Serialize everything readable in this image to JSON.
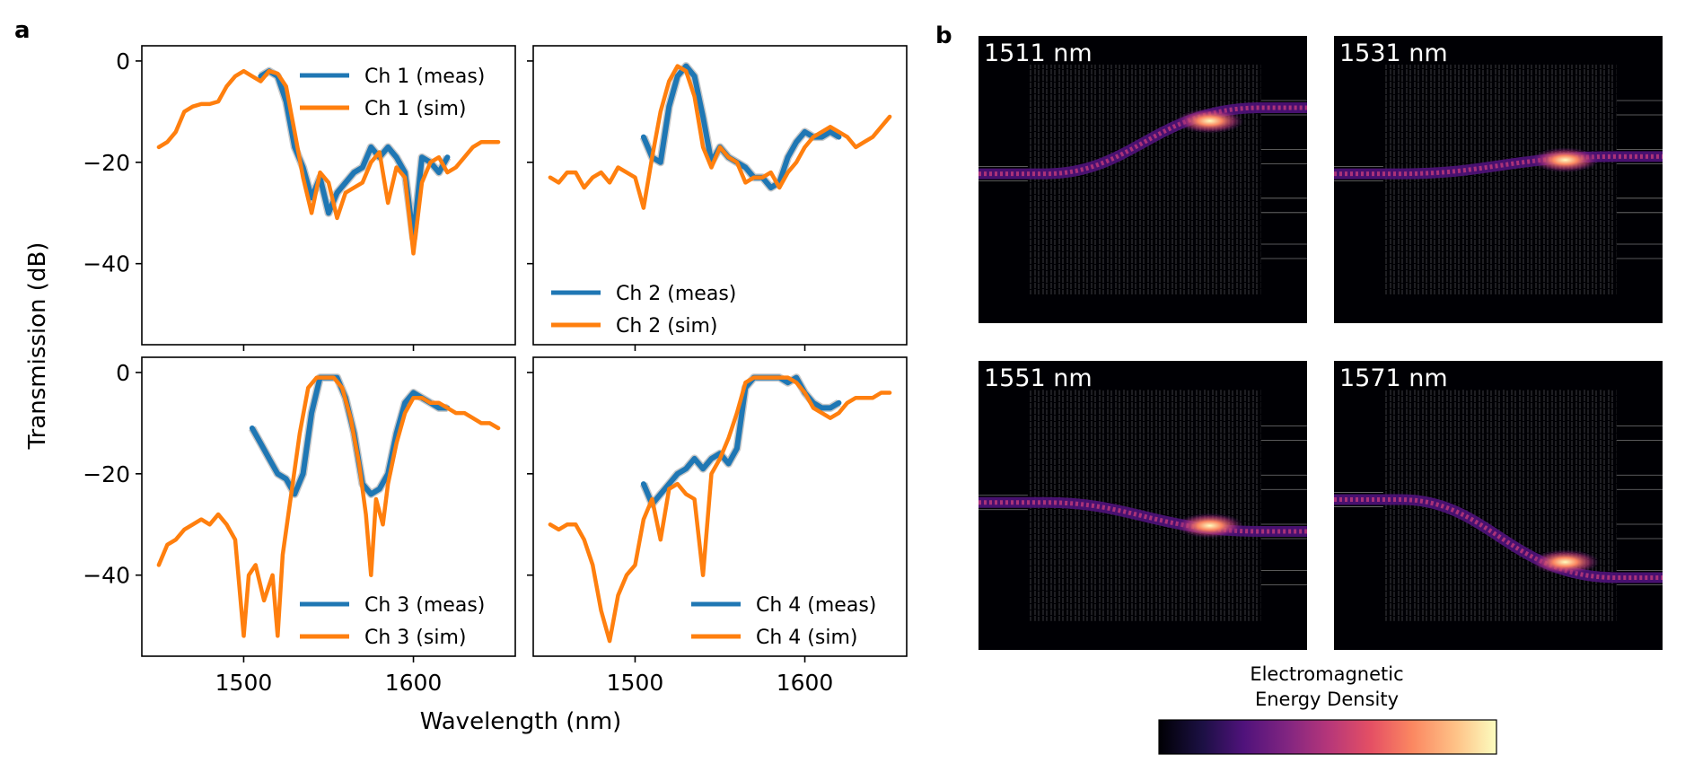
{
  "panel_a": {
    "label": "a",
    "xlabel": "Wavelength (nm)",
    "ylabel": "Transmission (dB)"
  },
  "panel_b": {
    "label": "b",
    "colorbar_title_line1": "Electromagnetic",
    "colorbar_title_line2": "Energy Density",
    "colormap": "magma",
    "fields": [
      {
        "label": "1511 nm",
        "input": 0.48,
        "output": 0.25,
        "output_name": "Ch 1"
      },
      {
        "label": "1531 nm",
        "input": 0.48,
        "output": 0.42,
        "output_name": "Ch 2"
      },
      {
        "label": "1551 nm",
        "input": 0.49,
        "output": 0.59,
        "output_name": "Ch 3"
      },
      {
        "label": "1571 nm",
        "input": 0.48,
        "output": 0.75,
        "output_name": "Ch 4"
      }
    ]
  },
  "colors": {
    "meas": "#1f77b4",
    "sim": "#ff7f0e",
    "field_bg": "#000004"
  },
  "chart_data": [
    {
      "type": "line",
      "channel": 1,
      "legend_loc": "upper-right",
      "xlim": [
        1440,
        1660
      ],
      "ylim": [
        -56,
        3
      ],
      "xticks": [
        1500,
        1600
      ],
      "yticks": [
        0,
        -20,
        -40
      ],
      "series": [
        {
          "name": "Ch 1 (meas)",
          "kind": "meas",
          "x": [
            1510,
            1515,
            1520,
            1525,
            1530,
            1535,
            1540,
            1545,
            1550,
            1555,
            1560,
            1565,
            1570,
            1575,
            1580,
            1585,
            1590,
            1595,
            1600,
            1605,
            1610,
            1615,
            1620
          ],
          "y": [
            -3,
            -2,
            -3,
            -8,
            -17,
            -21,
            -27,
            -23,
            -30,
            -26,
            -24,
            -22,
            -21,
            -17,
            -19,
            -17,
            -19,
            -22,
            -35,
            -19,
            -20,
            -22,
            -19
          ]
        },
        {
          "name": "Ch 1 (sim)",
          "kind": "sim",
          "x": [
            1450,
            1455,
            1460,
            1465,
            1470,
            1475,
            1480,
            1485,
            1490,
            1495,
            1500,
            1505,
            1510,
            1515,
            1520,
            1525,
            1530,
            1535,
            1540,
            1545,
            1550,
            1555,
            1560,
            1565,
            1570,
            1575,
            1580,
            1585,
            1590,
            1595,
            1600,
            1605,
            1610,
            1615,
            1620,
            1625,
            1630,
            1635,
            1640,
            1645,
            1650
          ],
          "y": [
            -17,
            -16,
            -14,
            -10,
            -9,
            -8.5,
            -8.5,
            -8,
            -5,
            -3,
            -2,
            -3,
            -4,
            -2,
            -2.5,
            -5,
            -14,
            -23,
            -30,
            -22,
            -24,
            -31,
            -26,
            -25,
            -24,
            -20,
            -18,
            -28,
            -21,
            -23,
            -38,
            -24,
            -20,
            -19,
            -22,
            -21,
            -19,
            -17,
            -16,
            -16,
            -16
          ]
        }
      ]
    },
    {
      "type": "line",
      "channel": 2,
      "legend_loc": "lower-right",
      "xlim": [
        1440,
        1660
      ],
      "ylim": [
        -56,
        3
      ],
      "xticks": [
        1500,
        1600
      ],
      "yticks": [
        0,
        -20,
        -40
      ],
      "series": [
        {
          "name": "Ch 2  (meas)",
          "kind": "meas",
          "x": [
            1505,
            1510,
            1515,
            1520,
            1525,
            1530,
            1535,
            1540,
            1545,
            1550,
            1555,
            1560,
            1565,
            1570,
            1575,
            1580,
            1585,
            1590,
            1595,
            1600,
            1605,
            1610,
            1615,
            1620
          ],
          "y": [
            -15,
            -19,
            -20,
            -9,
            -3,
            -1,
            -3,
            -11,
            -20,
            -17,
            -19,
            -20,
            -21,
            -23,
            -23,
            -25,
            -24,
            -19,
            -16,
            -14,
            -15,
            -15,
            -14,
            -15
          ]
        },
        {
          "name": "Ch 2 (sim)",
          "kind": "sim",
          "x": [
            1450,
            1455,
            1460,
            1465,
            1470,
            1475,
            1480,
            1485,
            1490,
            1495,
            1500,
            1505,
            1510,
            1515,
            1520,
            1525,
            1530,
            1535,
            1540,
            1545,
            1550,
            1555,
            1560,
            1565,
            1570,
            1575,
            1580,
            1585,
            1590,
            1595,
            1600,
            1605,
            1610,
            1615,
            1620,
            1625,
            1630,
            1635,
            1640,
            1645,
            1650
          ],
          "y": [
            -23,
            -24,
            -22,
            -22,
            -25,
            -23,
            -22,
            -24,
            -21,
            -22,
            -23,
            -29,
            -19,
            -10,
            -4,
            -1,
            -2,
            -7,
            -17,
            -21,
            -17,
            -19,
            -20,
            -24,
            -23,
            -23,
            -22,
            -25,
            -22,
            -20,
            -17,
            -15,
            -14,
            -13,
            -14,
            -15,
            -17,
            -16,
            -15,
            -13,
            -11
          ]
        }
      ]
    },
    {
      "type": "line",
      "channel": 3,
      "legend_loc": "lower-right",
      "xlim": [
        1440,
        1660
      ],
      "ylim": [
        -56,
        3
      ],
      "xticks": [
        1500,
        1600
      ],
      "yticks": [
        0,
        -20,
        -40
      ],
      "series": [
        {
          "name": "Ch 3 (meas)",
          "kind": "meas",
          "x": [
            1505,
            1510,
            1515,
            1520,
            1525,
            1530,
            1535,
            1540,
            1545,
            1550,
            1555,
            1560,
            1565,
            1570,
            1575,
            1580,
            1585,
            1590,
            1595,
            1600,
            1605,
            1610,
            1615,
            1620
          ],
          "y": [
            -11,
            -14,
            -17,
            -20,
            -21,
            -24,
            -20,
            -8,
            -1,
            -1,
            -1,
            -5,
            -12,
            -22,
            -24,
            -23,
            -20,
            -12,
            -6,
            -4,
            -5,
            -6,
            -7,
            -7
          ]
        },
        {
          "name": "Ch 3 (sim)",
          "kind": "sim",
          "x": [
            1450,
            1455,
            1460,
            1465,
            1470,
            1475,
            1480,
            1485,
            1490,
            1495,
            1500,
            1503,
            1507,
            1512,
            1517,
            1520,
            1523,
            1528,
            1533,
            1538,
            1543,
            1548,
            1553,
            1558,
            1563,
            1568,
            1572,
            1575,
            1578,
            1582,
            1585,
            1590,
            1595,
            1600,
            1605,
            1610,
            1615,
            1620,
            1625,
            1630,
            1635,
            1640,
            1645,
            1650
          ],
          "y": [
            -38,
            -34,
            -33,
            -31,
            -30,
            -29,
            -30,
            -28,
            -30,
            -33,
            -52,
            -40,
            -38,
            -45,
            -40,
            -52,
            -36,
            -24,
            -12,
            -3,
            -1,
            -1,
            -1,
            -3,
            -9,
            -18,
            -28,
            -40,
            -25,
            -30,
            -22,
            -14,
            -8,
            -5,
            -5,
            -6,
            -6,
            -7,
            -8,
            -8,
            -9,
            -10,
            -10,
            -11
          ]
        }
      ]
    },
    {
      "type": "line",
      "channel": 4,
      "legend_loc": "lower-right",
      "xlim": [
        1440,
        1660
      ],
      "ylim": [
        -56,
        3
      ],
      "xticks": [
        1500,
        1600
      ],
      "yticks": [
        0,
        -20,
        -40
      ],
      "series": [
        {
          "name": "Ch 4 (meas)",
          "kind": "meas",
          "x": [
            1505,
            1510,
            1515,
            1520,
            1525,
            1530,
            1535,
            1540,
            1545,
            1550,
            1555,
            1560,
            1565,
            1570,
            1575,
            1580,
            1585,
            1590,
            1595,
            1600,
            1605,
            1610,
            1615,
            1620
          ],
          "y": [
            -22,
            -26,
            -24,
            -22,
            -20,
            -19,
            -17,
            -19,
            -17,
            -16,
            -18,
            -15,
            -3,
            -1,
            -1,
            -1,
            -1,
            -2,
            -1,
            -4,
            -6,
            -7,
            -7,
            -6
          ]
        },
        {
          "name": "Ch 4 (sim)",
          "kind": "sim",
          "x": [
            1450,
            1455,
            1460,
            1465,
            1470,
            1475,
            1480,
            1485,
            1490,
            1495,
            1500,
            1505,
            1510,
            1515,
            1520,
            1525,
            1530,
            1535,
            1540,
            1545,
            1550,
            1555,
            1560,
            1565,
            1570,
            1575,
            1580,
            1585,
            1590,
            1595,
            1600,
            1605,
            1610,
            1615,
            1620,
            1625,
            1630,
            1635,
            1640,
            1645,
            1650
          ],
          "y": [
            -30,
            -31,
            -30,
            -30,
            -33,
            -38,
            -47,
            -53,
            -44,
            -40,
            -38,
            -29,
            -25,
            -33,
            -23,
            -22,
            -24,
            -25,
            -40,
            -20,
            -17,
            -13,
            -8,
            -2,
            -1,
            -1,
            -1,
            -1,
            -1,
            -2,
            -4,
            -7,
            -8,
            -9,
            -8,
            -6,
            -5,
            -5,
            -5,
            -4,
            -4
          ]
        }
      ]
    }
  ]
}
